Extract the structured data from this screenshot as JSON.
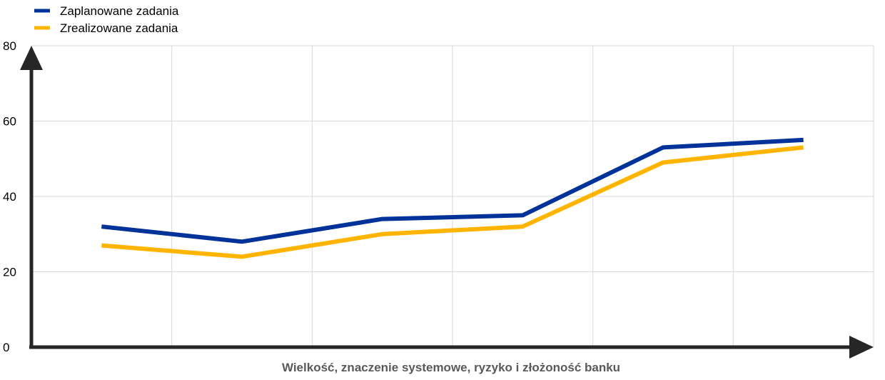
{
  "chart_data": {
    "type": "line",
    "x": [
      1,
      2,
      3,
      4,
      5,
      6
    ],
    "xlim": [
      0.5,
      6.5
    ],
    "ylim": [
      0,
      80
    ],
    "yticks": [
      0,
      20,
      40,
      60,
      80
    ],
    "xlabel": "Wielkość, znaczenie systemowe, ryzyko i złożoność banku",
    "ylabel": "",
    "title": "",
    "grid": true,
    "legend_position": "top-left",
    "series": [
      {
        "name": "Zaplanowane zadania",
        "color": "#003299",
        "values": [
          32,
          28,
          34,
          35,
          53,
          55
        ]
      },
      {
        "name": "Zrealizowane zadania",
        "color": "#FFB400",
        "values": [
          27,
          24,
          30,
          32,
          49,
          53
        ]
      }
    ],
    "axis_color": "#262626",
    "grid_color": "#d9d9d9"
  }
}
